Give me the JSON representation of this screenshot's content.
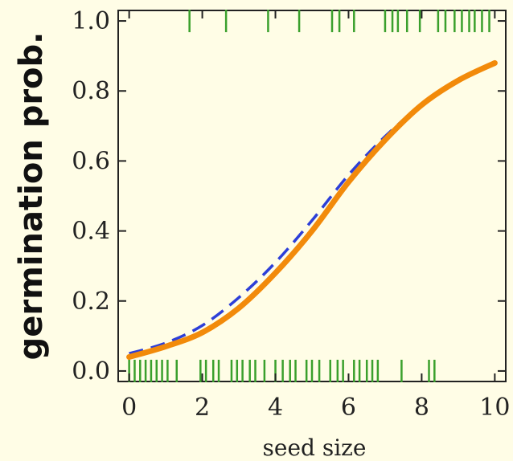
{
  "chart_data": {
    "type": "line",
    "title": "",
    "xlabel": "seed size",
    "ylabel": "germination prob.",
    "xlim": [
      -0.3,
      10.3
    ],
    "ylim": [
      -0.03,
      1.03
    ],
    "x_ticks": [
      "0",
      "2",
      "4",
      "6",
      "8",
      "10"
    ],
    "y_ticks": [
      "0.0",
      "0.2",
      "0.4",
      "0.6",
      "0.8",
      "1.0"
    ],
    "grid": false,
    "background": "#fffde6",
    "series": [
      {
        "style": "solid",
        "color": "#f28a0a",
        "x": [
          0,
          1,
          2,
          3,
          4,
          5,
          6,
          7,
          8,
          9,
          10
        ],
        "y": [
          0.04,
          0.07,
          0.11,
          0.18,
          0.28,
          0.4,
          0.54,
          0.66,
          0.76,
          0.83,
          0.88
        ]
      },
      {
        "style": "dashed",
        "color": "#2d3fd8",
        "x": [
          0,
          1,
          2,
          3,
          4,
          5,
          6,
          7,
          8,
          9,
          10
        ],
        "y": [
          0.05,
          0.08,
          0.13,
          0.21,
          0.31,
          0.43,
          0.56,
          0.67,
          0.76,
          0.83,
          0.88
        ]
      }
    ],
    "rug": {
      "color": "#3aa02c",
      "at_1": [
        1.65,
        2.65,
        3.8,
        4.65,
        5.55,
        5.75,
        6.15,
        7.0,
        7.2,
        7.35,
        7.6,
        7.95,
        8.45,
        8.65,
        8.9,
        9.1,
        9.3,
        9.45,
        9.65,
        9.85
      ],
      "at_0": [
        0.0,
        0.15,
        0.3,
        0.45,
        0.6,
        0.75,
        0.9,
        1.05,
        1.3,
        1.95,
        2.1,
        2.3,
        2.45,
        2.8,
        2.95,
        3.1,
        3.3,
        3.45,
        3.7,
        4.0,
        4.2,
        4.4,
        4.55,
        4.85,
        5.0,
        5.2,
        5.5,
        5.7,
        5.85,
        6.15,
        6.3,
        6.5,
        6.65,
        6.8,
        7.45,
        8.2,
        8.35
      ]
    }
  }
}
